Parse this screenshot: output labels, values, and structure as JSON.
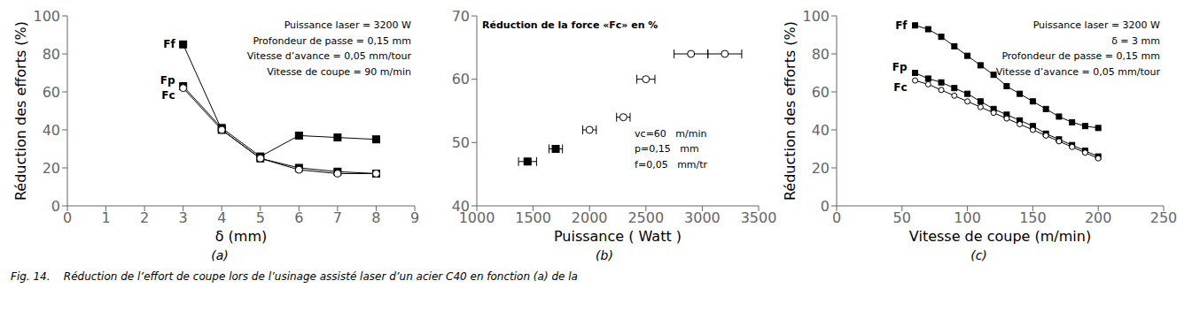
{
  "chart_data": [
    {
      "type": "line",
      "subtitle": "(a)",
      "x_label": "δ (mm)",
      "y_label": "Réduction des efforts (%)",
      "annotations": [
        "Puissance laser = 3200 W",
        "Profondeur de passe = 0,15 mm",
        "Vitesse d’avance = 0,05 mm/tour",
        "Vitesse de coupe = 90 m/min"
      ],
      "x": [
        3,
        4,
        5,
        6,
        7,
        8
      ],
      "series": [
        {
          "name": "Ff",
          "marker": "square",
          "values": [
            85,
            40,
            25,
            20,
            18,
            17
          ]
        },
        {
          "name": "Fp",
          "marker": "square",
          "values": [
            63,
            41,
            26,
            37,
            36,
            35
          ]
        },
        {
          "name": "Fc",
          "marker": "circle_open",
          "values": [
            62,
            40,
            25,
            19,
            17,
            17
          ]
        }
      ],
      "xlim": [
        0,
        9
      ],
      "ylim": [
        0,
        100
      ],
      "xticks": [
        0,
        1,
        2,
        3,
        4,
        5,
        6,
        7,
        8,
        9
      ],
      "yticks": [
        0,
        20,
        40,
        60,
        80,
        100
      ],
      "color": "#000000"
    },
    {
      "type": "scatter",
      "title": "Réduction de la force «Fc» en %",
      "subtitle": "(b)",
      "x_label": "Puissance ( Watt )",
      "annotations": [
        "vc=60   m/min",
        "p=0,15   mm",
        "f=0,05   mm/tr"
      ],
      "series": [
        {
          "marker": "square",
          "x": [
            1450,
            1700
          ],
          "values": [
            47,
            49
          ],
          "xerr": [
            80,
            60
          ]
        },
        {
          "marker": "circle_open",
          "x": [
            2000,
            2300,
            2500,
            2900,
            3200
          ],
          "values": [
            52,
            54,
            60,
            64,
            64
          ],
          "xerr": [
            60,
            60,
            80,
            150,
            150
          ]
        }
      ],
      "xlim": [
        1000,
        3500
      ],
      "ylim": [
        40,
        70
      ],
      "xticks": [
        1000,
        1500,
        2000,
        2500,
        3000,
        3500
      ],
      "yticks": [
        40,
        50,
        60,
        70
      ],
      "color": "#000000"
    },
    {
      "type": "line",
      "subtitle": "(c)",
      "x_label": "Vitesse de coupe (m/min)",
      "y_label": "Réduction des efforts (%)",
      "annotations": [
        "Puissance laser = 3200 W",
        "δ = 3 mm",
        "Profondeur de passe = 0,15 mm",
        "Vitesse d’avance = 0,05 mm/tour"
      ],
      "x": [
        60,
        70,
        80,
        90,
        100,
        110,
        120,
        130,
        140,
        150,
        160,
        170,
        180,
        190,
        200
      ],
      "series": [
        {
          "name": "Ff",
          "marker": "square",
          "values": [
            95,
            93,
            89,
            84,
            79,
            74,
            69,
            63,
            59,
            55,
            51,
            47,
            44,
            42,
            41
          ]
        },
        {
          "name": "Fp",
          "marker": "square",
          "values": [
            70,
            67,
            65,
            62,
            59,
            55,
            51,
            48,
            45,
            42,
            38,
            35,
            32,
            29,
            26
          ]
        },
        {
          "name": "Fc",
          "marker": "circle_open",
          "values": [
            66,
            64,
            61,
            58,
            55,
            52,
            49,
            46,
            43,
            40,
            37,
            34,
            31,
            28,
            25
          ]
        }
      ],
      "xlim": [
        0,
        250
      ],
      "ylim": [
        0,
        100
      ],
      "xticks": [
        0,
        50,
        100,
        150,
        200,
        250
      ],
      "yticks": [
        0,
        20,
        40,
        60,
        80,
        100
      ],
      "color": "#000000"
    }
  ],
  "caption": "Fig. 14.    Réduction de l’effort de coupe lors de l’usinage assisté laser d’un acier C40 en fonction (a) de la"
}
